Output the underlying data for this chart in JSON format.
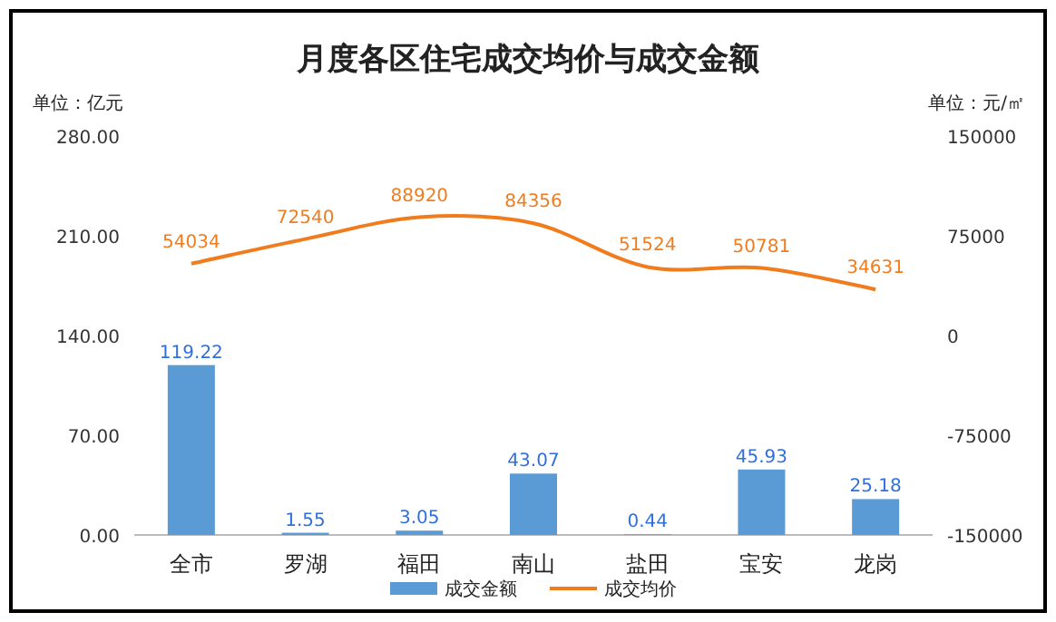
{
  "chart_data": {
    "type": "bar",
    "title": "月度各区住宅成交均价与成交金额",
    "ylabel": "单位：亿元",
    "y2label": "单位：元/㎡",
    "categories": [
      "全市",
      "罗湖",
      "福田",
      "南山",
      "盐田",
      "宝安",
      "龙岗"
    ],
    "series": [
      {
        "name": "成交金额",
        "color": "#5b9bd5",
        "values": [
          119.22,
          1.55,
          3.05,
          43.07,
          0.44,
          45.93,
          25.18
        ],
        "value_labels": [
          "119.22",
          "1.55",
          "3.05",
          "43.07",
          "0.44",
          "45.93",
          "25.18"
        ]
      },
      {
        "name": "成交均价",
        "type": "line",
        "axis": "y2",
        "color": "#f07c1e",
        "values": [
          54034,
          72540,
          88920,
          84356,
          51524,
          50781,
          34631
        ],
        "value_labels": [
          "54034",
          "72540",
          "88920",
          "84356",
          "51524",
          "50781",
          "34631"
        ]
      }
    ],
    "ylim": [
      0,
      280
    ],
    "yticks": [
      {
        "value": 0,
        "label": "0.00"
      },
      {
        "value": 70,
        "label": "70.00"
      },
      {
        "value": 140,
        "label": "140.00"
      },
      {
        "value": 210,
        "label": "210.00"
      },
      {
        "value": 280,
        "label": "280.00"
      }
    ],
    "y2lim": [
      -150000,
      150000
    ],
    "y2ticks": [
      -150000,
      -75000,
      0,
      75000,
      150000
    ],
    "legend": "bottom",
    "grid": false
  }
}
